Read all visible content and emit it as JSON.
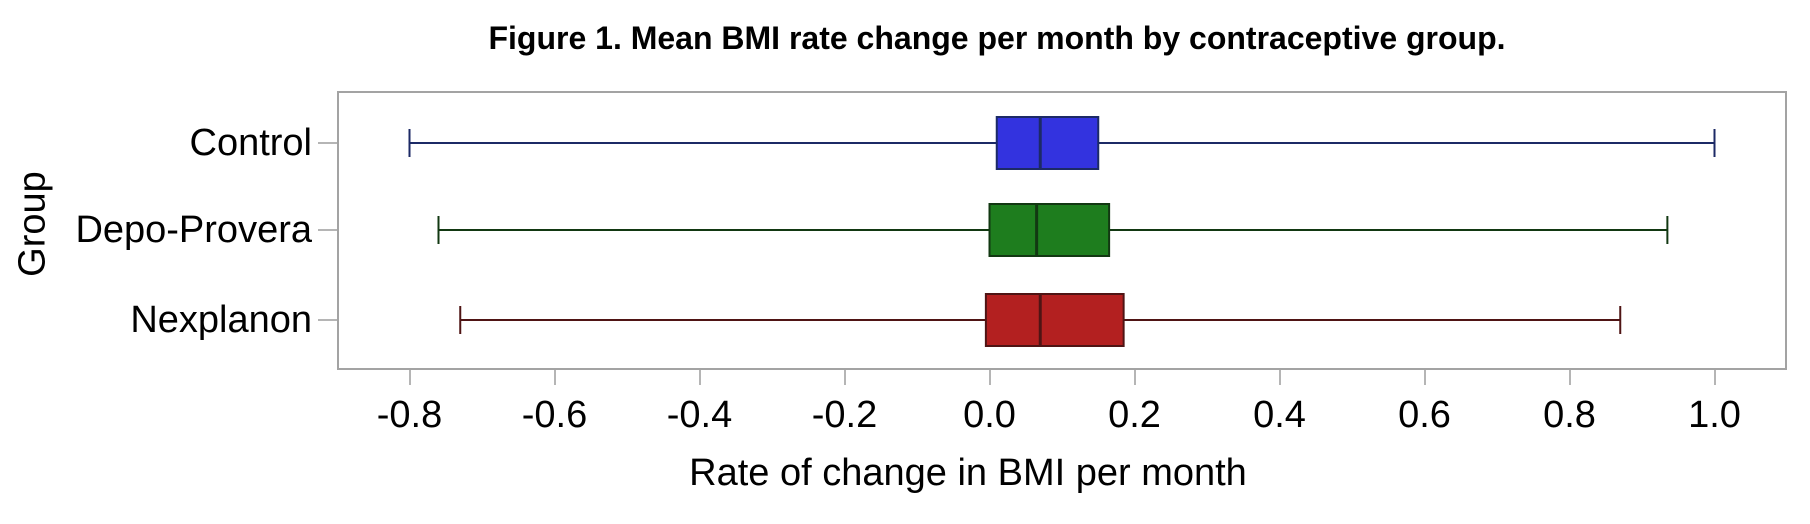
{
  "figure": {
    "title": "Figure 1. Mean BMI rate change per month by contraceptive group.",
    "y_axis_label": "Group",
    "x_axis_label": "Rate of change in BMI per month"
  },
  "colors": {
    "background": "#ffffff",
    "frame": "#a3a3a3",
    "tick": "#b5b5b5",
    "text": "#000000"
  },
  "chart_data": {
    "type": "boxplot",
    "orientation": "horizontal",
    "title": "Figure 1. Mean BMI rate change per month by contraceptive group.",
    "xlabel": "Rate of change in BMI per month",
    "ylabel": "Group",
    "xlim": [
      -0.9,
      1.1
    ],
    "grid": false,
    "legend": null,
    "x_ticks": [
      -0.8,
      -0.6,
      -0.4,
      -0.2,
      0.0,
      0.2,
      0.4,
      0.6,
      0.8,
      1.0
    ],
    "x_tick_labels": [
      "-0.8",
      "-0.6",
      "-0.4",
      "-0.2",
      "0.0",
      "0.2",
      "0.4",
      "0.6",
      "0.8",
      "1.0"
    ],
    "categories": [
      "Control",
      "Depo-Provera",
      "Nexplanon"
    ],
    "groups": [
      {
        "label": "Control",
        "fill": "#3333df",
        "stroke": "#1c2a66",
        "whisker_low": -0.8,
        "q1": 0.01,
        "median": 0.07,
        "q3": 0.15,
        "whisker_high": 1.0
      },
      {
        "label": "Depo-Provera",
        "fill": "#1e7d1e",
        "stroke": "#123812",
        "whisker_low": -0.76,
        "q1": 0.0,
        "median": 0.065,
        "q3": 0.165,
        "whisker_high": 0.935
      },
      {
        "label": "Nexplanon",
        "fill": "#b32020",
        "stroke": "#4f1414",
        "whisker_low": -0.73,
        "q1": -0.005,
        "median": 0.07,
        "q3": 0.185,
        "whisker_high": 0.87
      }
    ]
  }
}
